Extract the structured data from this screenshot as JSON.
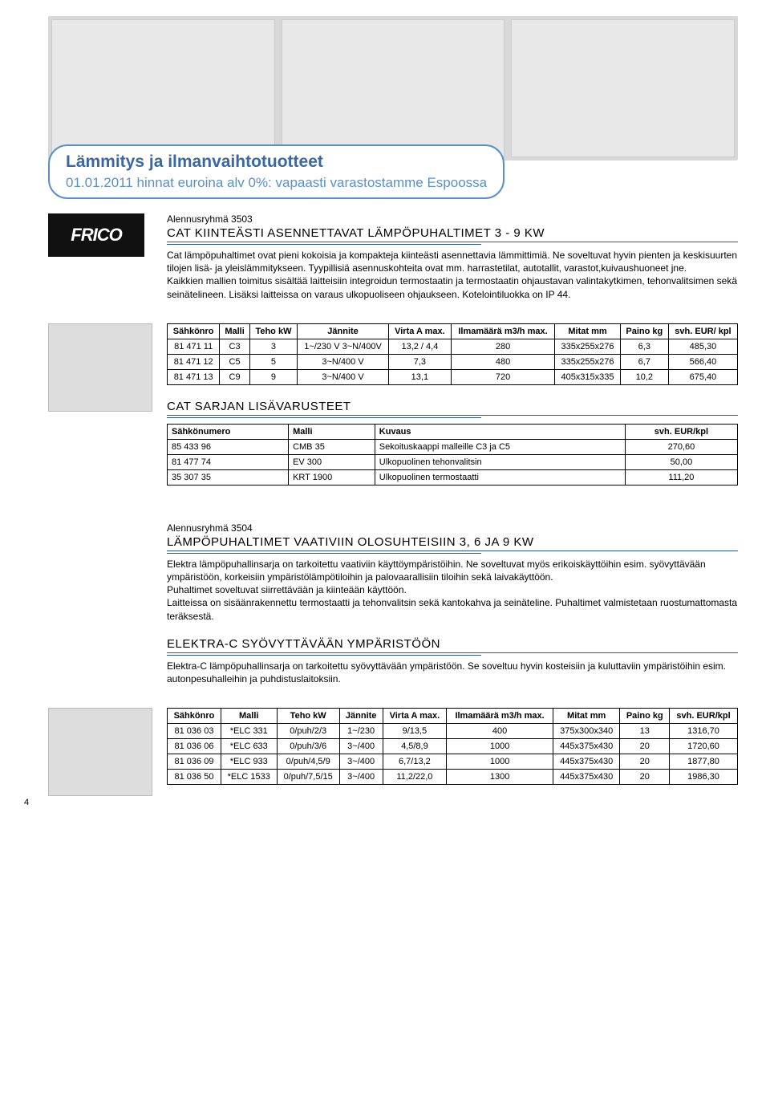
{
  "header": {
    "title1": "Lämmitys ja ilmanvaihtotuotteet",
    "title2": "01.01.2011 hinnat euroina alv 0%: vapaasti varastostamme Espoossa"
  },
  "logo_text": "FRICO",
  "section1": {
    "alen": "Alennusryhmä 3503",
    "title": "CAT KIINTEÄSTI ASENNETTAVAT LÄMPÖPUHALTIMET 3 - 9 KW",
    "body": "Cat lämpöpuhaltimet ovat pieni kokoisia ja kompakteja kiinteästi asennettavia lämmittimiä. Ne soveltuvat hyvin pienten ja keskisuurten tilojen lisä- ja yleislämmitykseen. Tyypillisiä asennuskohteita ovat mm. harrastetilat, autotallit, varastot,kuivaushuoneet jne.\nKaikkien mallien toimitus sisältää laitteisiin integroidun termostaatin ja termostaatin ohjaustavan valintakytkimen, tehonvalitsimen sekä seinätelineen. Lisäksi laitteissa on varaus ulkopuoliseen ohjaukseen. Kotelointiluokka on IP 44.",
    "table": {
      "cols": [
        "Sähkönro",
        "Malli",
        "Teho kW",
        "Jännite",
        "Virta A max.",
        "Ilmamäärä m3/h max.",
        "Mitat mm",
        "Paino kg",
        "svh. EUR/ kpl"
      ],
      "rows": [
        [
          "81 471 11",
          "C3",
          "3",
          "1~/230 V 3~N/400V",
          "13,2 / 4,4",
          "280",
          "335x255x276",
          "6,3",
          "485,30"
        ],
        [
          "81 471 12",
          "C5",
          "5",
          "3~N/400 V",
          "7,3",
          "480",
          "335x255x276",
          "6,7",
          "566,40"
        ],
        [
          "81 471 13",
          "C9",
          "9",
          "3~N/400 V",
          "13,1",
          "720",
          "405x315x335",
          "10,2",
          "675,40"
        ]
      ]
    }
  },
  "section2": {
    "title": "CAT SARJAN LISÄVARUSTEET",
    "table": {
      "cols": [
        "Sähkönumero",
        "Malli",
        "Kuvaus",
        "svh. EUR/kpl"
      ],
      "rows": [
        [
          "85 433 96",
          "CMB 35",
          "Sekoituskaappi malleille C3 ja C5",
          "270,60"
        ],
        [
          "81 477 74",
          "EV 300",
          "Ulkopuolinen tehonvalitsin",
          "50,00"
        ],
        [
          "35 307 35",
          "KRT 1900",
          "Ulkopuolinen termostaatti",
          "111,20"
        ]
      ]
    }
  },
  "section3": {
    "alen": "Alennusryhmä 3504",
    "title": "LÄMPÖPUHALTIMET VAATIVIIN OLOSUHTEISIIN 3, 6 JA 9 KW",
    "body": "Elektra lämpöpuhallinsarja on tarkoitettu vaativiin käyttöympäristöihin. Ne soveltuvat myös erikoiskäyttöihin esim. syövyttävään ympäristöön, korkeisiin ympäristölämpötiloihin ja palovaarallisiin tiloihin sekä laivakäyttöön.\nPuhaltimet soveltuvat siirrettävään ja kiinteään käyttöön.\nLaitteissa on sisäänrakennettu termostaatti ja tehonvalitsin sekä kantokahva ja seinäteline. Puhaltimet valmistetaan ruostumattomasta teräksestä."
  },
  "section4": {
    "title": "ELEKTRA-C SYÖVYTTÄVÄÄN YMPÄRISTÖÖN",
    "body": "Elektra-C lämpöpuhallinsarja on tarkoitettu syövyttävään ympäristöön. Se soveltuu hyvin kosteisiin ja kuluttaviin ympäristöihin esim. autonpesuhalleihin ja puhdistuslaitoksiin.",
    "table": {
      "cols": [
        "Sähkönro",
        "Malli",
        "Teho kW",
        "Jännite",
        "Virta A max.",
        "Ilmamäärä m3/h max.",
        "Mitat mm",
        "Paino kg",
        "svh. EUR/kpl"
      ],
      "rows": [
        [
          "81 036 03",
          "*ELC 331",
          "0/puh/2/3",
          "1~/230",
          "9/13,5",
          "400",
          "375x300x340",
          "13",
          "1316,70"
        ],
        [
          "81 036 06",
          "*ELC 633",
          "0/puh/3/6",
          "3~/400",
          "4,5/8,9",
          "1000",
          "445x375x430",
          "20",
          "1720,60"
        ],
        [
          "81 036 09",
          "*ELC 933",
          "0/puh/4,5/9",
          "3~/400",
          "6,7/13,2",
          "1000",
          "445x375x430",
          "20",
          "1877,80"
        ],
        [
          "81 036 50",
          "*ELC 1533",
          "0/puh/7,5/15",
          "3~/400",
          "11,2/22,0",
          "1300",
          "445x375x430",
          "20",
          "1986,30"
        ]
      ]
    }
  },
  "page_num": "4"
}
